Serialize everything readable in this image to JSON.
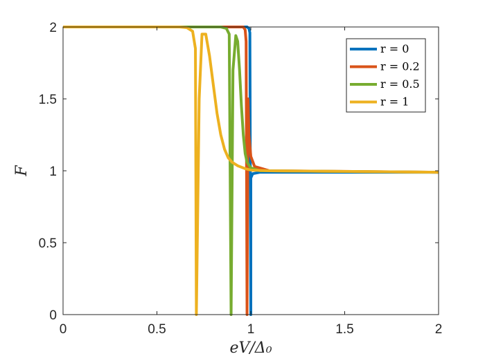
{
  "chart_data": {
    "type": "line",
    "title": "",
    "xlabel": "eV/Δ₀",
    "ylabel": "F",
    "xlim": [
      0,
      2
    ],
    "ylim": [
      0,
      2
    ],
    "x_ticks": [
      0,
      0.5,
      1,
      1.5,
      2
    ],
    "x_tick_labels": [
      "0",
      "0.5",
      "1",
      "1.5",
      "2"
    ],
    "y_ticks": [
      0,
      0.5,
      1,
      1.5,
      2
    ],
    "y_tick_labels": [
      "0",
      "0.5",
      "1",
      "1.5",
      "2"
    ],
    "grid": false,
    "legend_position": "top-right",
    "series": [
      {
        "name": "r = 0",
        "color": "#0072BD",
        "points": [
          [
            0,
            2
          ],
          [
            0.98,
            2
          ],
          [
            0.99,
            1.99
          ],
          [
            0.995,
            1.96
          ],
          [
            1.0,
            0
          ],
          [
            1.0,
            0.95
          ],
          [
            1.01,
            0.98
          ],
          [
            1.05,
            0.99
          ],
          [
            2,
            0.99
          ]
        ]
      },
      {
        "name": "r = 0.2",
        "color": "#D95319",
        "points": [
          [
            0,
            2
          ],
          [
            0.96,
            2
          ],
          [
            0.97,
            1.98
          ],
          [
            0.975,
            1.9
          ],
          [
            0.98,
            0
          ],
          [
            0.985,
            1.5
          ],
          [
            0.99,
            1.25
          ],
          [
            1.0,
            1.1
          ],
          [
            1.02,
            1.03
          ],
          [
            1.1,
            1.0
          ],
          [
            2,
            0.99
          ]
        ]
      },
      {
        "name": "r = 0.5",
        "color": "#77AC30",
        "points": [
          [
            0,
            2
          ],
          [
            0.84,
            2
          ],
          [
            0.87,
            1.99
          ],
          [
            0.885,
            1.95
          ],
          [
            0.895,
            0
          ],
          [
            0.905,
            1.7
          ],
          [
            0.92,
            1.94
          ],
          [
            0.93,
            1.9
          ],
          [
            0.94,
            1.7
          ],
          [
            0.95,
            1.45
          ],
          [
            0.96,
            1.25
          ],
          [
            0.97,
            1.12
          ],
          [
            0.98,
            1.06
          ],
          [
            1.0,
            1.02
          ],
          [
            1.05,
            1.0
          ],
          [
            2,
            0.99
          ]
        ]
      },
      {
        "name": "r = 1",
        "color": "#EDB120",
        "points": [
          [
            0,
            2
          ],
          [
            0.62,
            2
          ],
          [
            0.66,
            1.995
          ],
          [
            0.69,
            1.97
          ],
          [
            0.705,
            1.85
          ],
          [
            0.71,
            0
          ],
          [
            0.725,
            1.5
          ],
          [
            0.74,
            1.95
          ],
          [
            0.76,
            1.95
          ],
          [
            0.78,
            1.8
          ],
          [
            0.8,
            1.6
          ],
          [
            0.82,
            1.4
          ],
          [
            0.84,
            1.25
          ],
          [
            0.86,
            1.15
          ],
          [
            0.88,
            1.09
          ],
          [
            0.9,
            1.06
          ],
          [
            0.93,
            1.035
          ],
          [
            0.97,
            1.015
          ],
          [
            1.0,
            1.005
          ],
          [
            1.1,
            1.0
          ],
          [
            2,
            0.99
          ]
        ]
      }
    ]
  }
}
